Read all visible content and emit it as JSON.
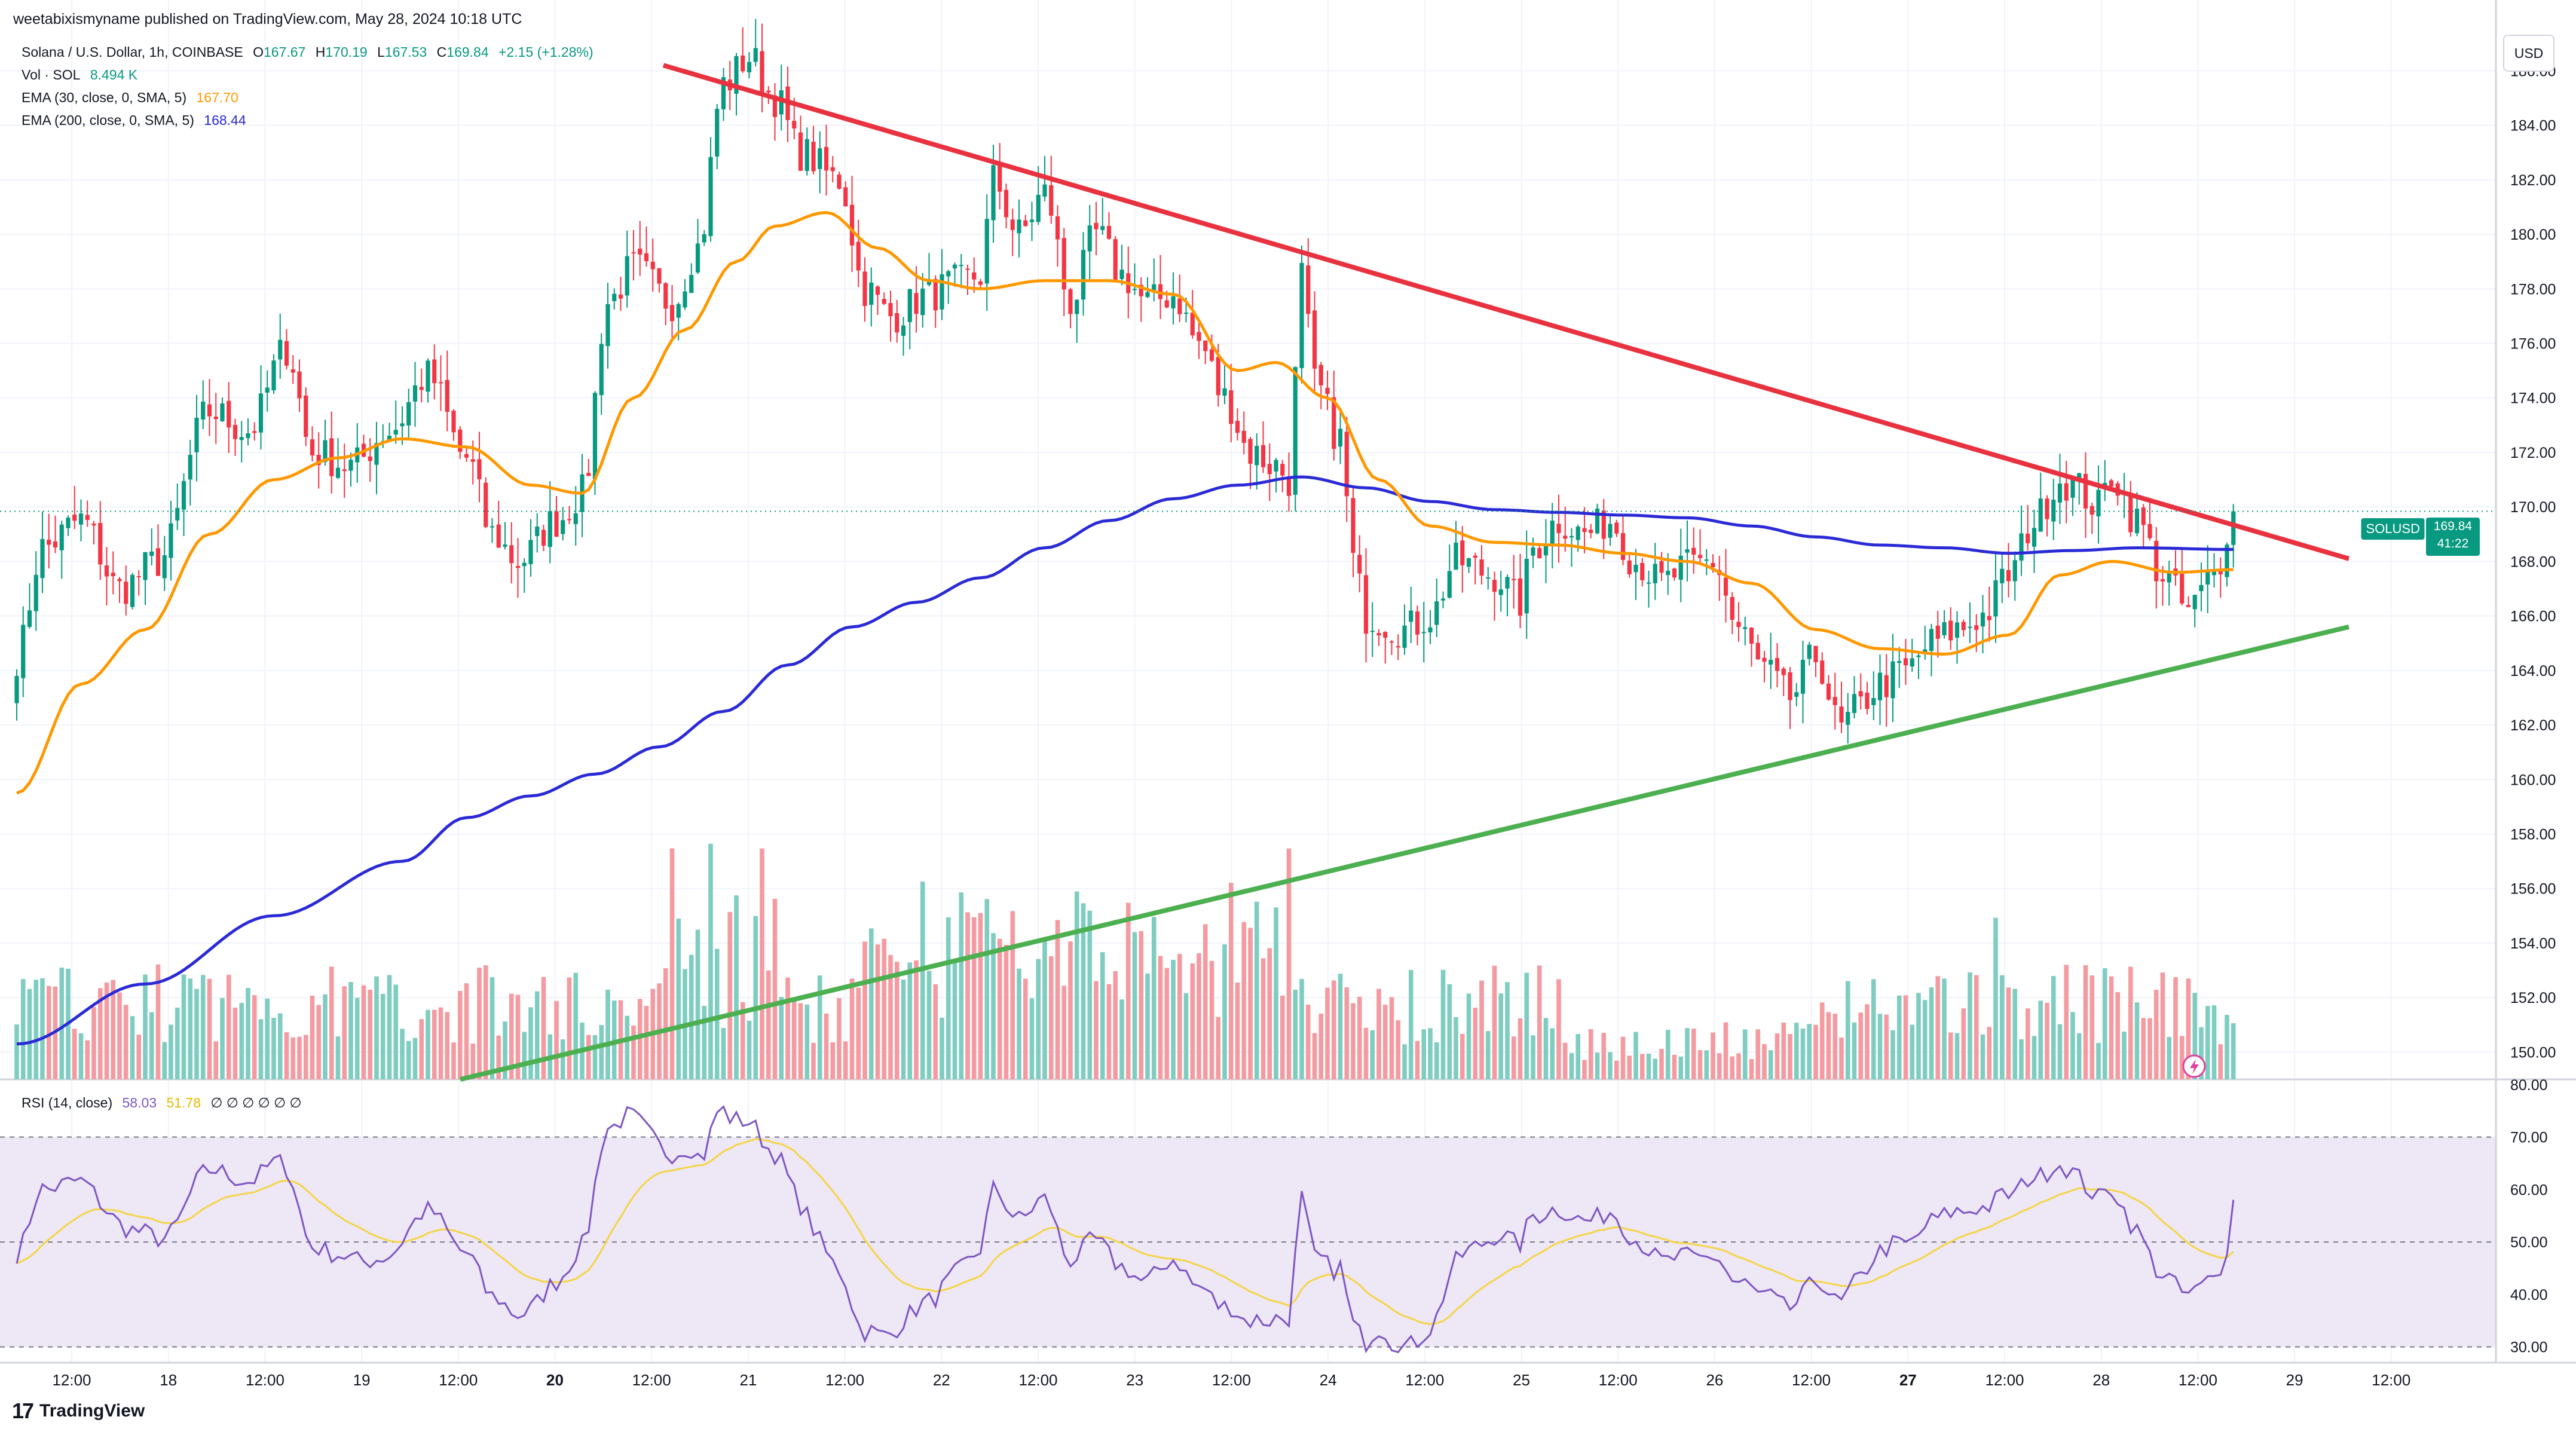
{
  "header": {
    "published": "weetabixismyname published on TradingView.com, May 28, 2024 10:18 UTC"
  },
  "legend": {
    "title": "Solana / U.S. Dollar, 1h, COINBASE",
    "o_label": "O",
    "o_val": "167.67",
    "h_label": "H",
    "h_val": "170.19",
    "l_label": "L",
    "l_val": "167.53",
    "c_label": "C",
    "c_val": "169.84",
    "change": "+2.15 (+1.28%)",
    "vol_label": "Vol · SOL",
    "vol_val": "8.494 K",
    "ema30_label": "EMA (30, close, 0, SMA, 5)",
    "ema30_val": "167.70",
    "ema200_label": "EMA (200, close, 0, SMA, 5)",
    "ema200_val": "168.44",
    "rsi_label": "RSI (14, close)",
    "rsi_val": "58.03",
    "rsi_ma_val": "51.78",
    "rsi_na": "∅ ∅ ∅ ∅ ∅ ∅"
  },
  "currency": "USD",
  "price_tag": {
    "symbol": "SOLUSD",
    "price": "169.84",
    "countdown": "41:22"
  },
  "footer": {
    "brand": "TradingView"
  },
  "colors": {
    "up": "#089981",
    "down": "#f23645",
    "vol_up": "#7fcdc1",
    "vol_down": "#f49ba1",
    "ema30": "#ff9800",
    "ema200": "#2a2ad6",
    "resistance": "#e8323f",
    "support": "#4caf50",
    "rsi": "#7e57c2",
    "rsi_ma": "#f5d547",
    "rsi_band": "#ede7f6"
  },
  "chart_data": [
    {
      "type": "candlestick",
      "title": "Solana / U.S. Dollar, 1h, COINBASE",
      "ylabel": "USD",
      "ylim": [
        149.0,
        187.5
      ],
      "y_ticks": [
        "150.00",
        "152.00",
        "154.00",
        "156.00",
        "158.00",
        "160.00",
        "162.00",
        "164.00",
        "166.00",
        "168.00",
        "170.00",
        "172.00",
        "174.00",
        "176.00",
        "178.00",
        "180.00",
        "182.00",
        "184.00",
        "186.00"
      ],
      "x_ticks": [
        "12:00",
        "18",
        "12:00",
        "19",
        "12:00",
        "20",
        "12:00",
        "21",
        "12:00",
        "22",
        "12:00",
        "23",
        "12:00",
        "24",
        "12:00",
        "25",
        "12:00",
        "26",
        "12:00",
        "27",
        "12:00",
        "28",
        "12:00",
        "29",
        "12:00"
      ],
      "close_path_knots": [
        [
          0,
          164.5
        ],
        [
          4,
          168.5
        ],
        [
          10,
          169.5
        ],
        [
          16,
          167.0
        ],
        [
          22,
          168.0
        ],
        [
          30,
          173.5
        ],
        [
          36,
          172.8
        ],
        [
          42,
          175.8
        ],
        [
          46,
          172.0
        ],
        [
          52,
          171.5
        ],
        [
          58,
          172.8
        ],
        [
          64,
          174.8
        ],
        [
          70,
          171.8
        ],
        [
          74,
          169.0
        ],
        [
          78,
          168.0
        ],
        [
          84,
          169.5
        ],
        [
          88,
          170.5
        ],
        [
          92,
          177.5
        ],
        [
          96,
          178.8
        ],
        [
          102,
          177.5
        ],
        [
          106,
          179.5
        ],
        [
          110,
          185.5
        ],
        [
          114,
          186.5
        ],
        [
          118,
          185.0
        ],
        [
          122,
          183.0
        ],
        [
          128,
          182.0
        ],
        [
          132,
          178.0
        ],
        [
          136,
          177.0
        ],
        [
          142,
          177.8
        ],
        [
          146,
          178.2
        ],
        [
          150,
          178.5
        ],
        [
          152,
          182.0
        ],
        [
          156,
          180.0
        ],
        [
          160,
          181.5
        ],
        [
          164,
          177.5
        ],
        [
          168,
          180.0
        ],
        [
          172,
          178.5
        ],
        [
          176,
          177.5
        ],
        [
          180,
          177.8
        ],
        [
          184,
          176.0
        ],
        [
          188,
          174.0
        ],
        [
          192,
          172.0
        ],
        [
          196,
          171.5
        ],
        [
          198,
          171.0
        ],
        [
          200,
          178.5
        ],
        [
          202,
          174.5
        ],
        [
          206,
          172.5
        ],
        [
          208,
          168.0
        ],
        [
          210,
          166.0
        ],
        [
          216,
          165.5
        ],
        [
          220,
          166.0
        ],
        [
          224,
          168.0
        ],
        [
          230,
          167.5
        ],
        [
          234,
          166.5
        ],
        [
          236,
          168.5
        ],
        [
          240,
          169.5
        ],
        [
          244,
          169.0
        ],
        [
          248,
          169.5
        ],
        [
          252,
          168.0
        ],
        [
          256,
          167.2
        ],
        [
          260,
          167.8
        ],
        [
          264,
          168.0
        ],
        [
          268,
          165.5
        ],
        [
          272,
          164.0
        ],
        [
          276,
          163.0
        ],
        [
          280,
          164.5
        ],
        [
          284,
          161.8
        ],
        [
          286,
          162.5
        ],
        [
          290,
          163.5
        ],
        [
          294,
          164.0
        ],
        [
          298,
          165.0
        ],
        [
          302,
          165.5
        ],
        [
          306,
          166.0
        ],
        [
          310,
          167.5
        ],
        [
          314,
          169.5
        ],
        [
          318,
          171.0
        ],
        [
          320,
          170.8
        ],
        [
          324,
          170.0
        ],
        [
          326,
          171.2
        ],
        [
          330,
          169.5
        ],
        [
          334,
          167.5
        ],
        [
          338,
          166.2
        ],
        [
          342,
          167.5
        ],
        [
          345,
          169.84
        ]
      ],
      "ema30": [
        [
          0,
          159.5
        ],
        [
          10,
          163.5
        ],
        [
          20,
          165.5
        ],
        [
          30,
          169.0
        ],
        [
          40,
          171.0
        ],
        [
          50,
          171.8
        ],
        [
          60,
          172.5
        ],
        [
          70,
          172.2
        ],
        [
          80,
          170.8
        ],
        [
          88,
          170.5
        ],
        [
          96,
          174.0
        ],
        [
          104,
          176.5
        ],
        [
          112,
          179.0
        ],
        [
          118,
          180.3
        ],
        [
          126,
          180.8
        ],
        [
          134,
          179.5
        ],
        [
          142,
          178.3
        ],
        [
          150,
          178.0
        ],
        [
          160,
          178.3
        ],
        [
          170,
          178.3
        ],
        [
          180,
          177.8
        ],
        [
          190,
          175.0
        ],
        [
          196,
          175.3
        ],
        [
          204,
          174.0
        ],
        [
          212,
          171.0
        ],
        [
          220,
          169.3
        ],
        [
          230,
          168.7
        ],
        [
          240,
          168.6
        ],
        [
          250,
          168.3
        ],
        [
          260,
          168.0
        ],
        [
          270,
          167.2
        ],
        [
          280,
          165.5
        ],
        [
          290,
          164.8
        ],
        [
          300,
          164.6
        ],
        [
          310,
          165.3
        ],
        [
          318,
          167.5
        ],
        [
          326,
          168.0
        ],
        [
          336,
          167.6
        ],
        [
          345,
          167.7
        ]
      ],
      "ema200": [
        [
          0,
          150.3
        ],
        [
          20,
          152.5
        ],
        [
          40,
          155.0
        ],
        [
          60,
          157.0
        ],
        [
          70,
          158.6
        ],
        [
          80,
          159.4
        ],
        [
          90,
          160.2
        ],
        [
          100,
          161.2
        ],
        [
          110,
          162.5
        ],
        [
          120,
          164.2
        ],
        [
          130,
          165.6
        ],
        [
          140,
          166.5
        ],
        [
          150,
          167.4
        ],
        [
          160,
          168.5
        ],
        [
          170,
          169.5
        ],
        [
          180,
          170.3
        ],
        [
          190,
          170.8
        ],
        [
          200,
          171.1
        ],
        [
          210,
          170.7
        ],
        [
          220,
          170.2
        ],
        [
          230,
          169.9
        ],
        [
          240,
          169.8
        ],
        [
          250,
          169.7
        ],
        [
          260,
          169.6
        ],
        [
          270,
          169.3
        ],
        [
          280,
          168.9
        ],
        [
          290,
          168.6
        ],
        [
          300,
          168.5
        ],
        [
          310,
          168.3
        ],
        [
          320,
          168.4
        ],
        [
          330,
          168.5
        ],
        [
          345,
          168.44
        ]
      ],
      "volume_max_pct_of_axis": 0.22
    },
    {
      "type": "line",
      "title": "RSI (14, close)",
      "ylim": [
        27,
        81
      ],
      "y_ticks": [
        "30.00",
        "40.00",
        "50.00",
        "60.00",
        "70.00",
        "80.00"
      ],
      "bands": [
        30,
        50,
        70
      ],
      "last": {
        "rsi": 58.03,
        "rsi_ma": 51.78
      }
    }
  ]
}
